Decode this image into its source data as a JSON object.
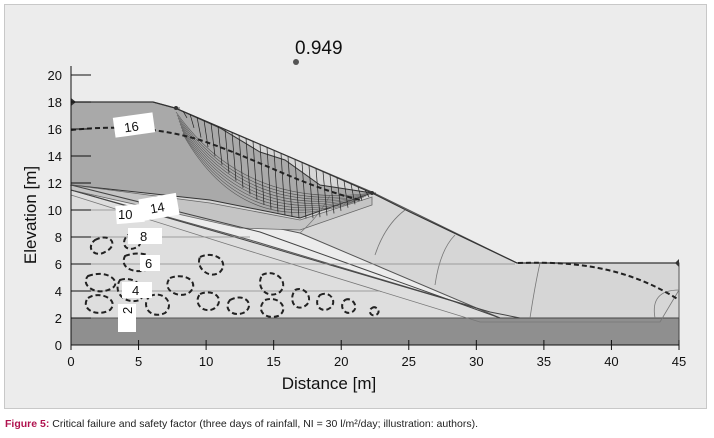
{
  "figure": {
    "safety_factor": "0.949",
    "x_axis": {
      "label": "Distance [m]",
      "ticks": [
        "0",
        "5",
        "10",
        "15",
        "20",
        "25",
        "30",
        "35",
        "40",
        "45"
      ],
      "range": [
        0,
        45
      ]
    },
    "y_axis": {
      "label": "Elevation [m]",
      "ticks": [
        "0",
        "2",
        "4",
        "6",
        "8",
        "10",
        "12",
        "14",
        "16",
        "18",
        "20"
      ],
      "range": [
        0,
        20
      ]
    },
    "contour_labels": [
      "16",
      "14",
      "10",
      "8",
      "6",
      "4",
      "2"
    ]
  },
  "caption": {
    "lead": "Figure 5:",
    "text": " Critical failure and safety factor (three days of rainfall, NI = 30 l/m²/day; illustration: authors)."
  },
  "colors": {
    "upper_layer": "#a9a9a9",
    "slope_mesh": "#d9d9d9",
    "lower_soil": "#dcdcdc",
    "base_layer": "#8f8f8f",
    "slip_surface": "#333333"
  }
}
